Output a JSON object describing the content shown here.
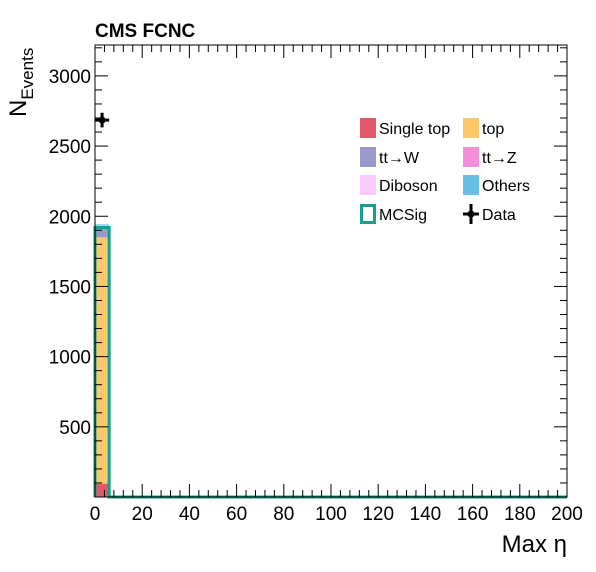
{
  "chart_data": {
    "type": "bar",
    "title": "CMS FCNC",
    "xlabel": "Max η",
    "ylabel": "N",
    "ylabel_sub": "Events",
    "xlim": [
      0,
      200
    ],
    "ylim": [
      0,
      3220
    ],
    "x_ticks": [
      "0",
      "20",
      "40",
      "60",
      "80",
      "100",
      "120",
      "140",
      "160",
      "180",
      "200"
    ],
    "y_ticks": [
      "500",
      "1000",
      "1500",
      "2000",
      "2500",
      "3000"
    ],
    "bin_edges": [
      0,
      6
    ],
    "stack": [
      {
        "name": "Single top",
        "color": "#e05a68",
        "values": [
          95
        ]
      },
      {
        "name": "top",
        "color": "#fdc86b",
        "values": [
          1755
        ]
      },
      {
        "name": "tt→W",
        "color": "#9b98cc",
        "values": [
          80
        ]
      },
      {
        "name": "tt→Z",
        "color": "#f28fd8",
        "values": [
          5
        ]
      },
      {
        "name": "Diboson",
        "color": "#fbc8fb",
        "values": [
          2
        ]
      },
      {
        "name": "Others",
        "color": "#66c0e6",
        "values": [
          5
        ]
      }
    ],
    "signal": {
      "name": "MCSig",
      "color": "#16a08a",
      "edges": [
        0,
        6,
        200
      ],
      "values": [
        1920,
        0
      ]
    },
    "data_points": {
      "name": "Data",
      "x": [
        3
      ],
      "y": [
        2685
      ],
      "xerr": 3,
      "yerr": 52
    },
    "legend": {
      "placement": "top-right",
      "entries": [
        {
          "label": "Single top",
          "style": "fill",
          "color": "#e05a68"
        },
        {
          "label": "top",
          "style": "fill",
          "color": "#fdc86b"
        },
        {
          "label": "tt→W",
          "style": "fill",
          "color": "#9b98cc"
        },
        {
          "label": "tt→Z",
          "style": "fill",
          "color": "#f28fd8"
        },
        {
          "label": "Diboson",
          "style": "fill",
          "color": "#fbc8fb"
        },
        {
          "label": "Others",
          "style": "fill",
          "color": "#66c0e6"
        },
        {
          "label": "MCSig",
          "style": "line",
          "color": "#16a08a"
        },
        {
          "label": "Data",
          "style": "marker",
          "color": "#000000"
        }
      ]
    }
  }
}
